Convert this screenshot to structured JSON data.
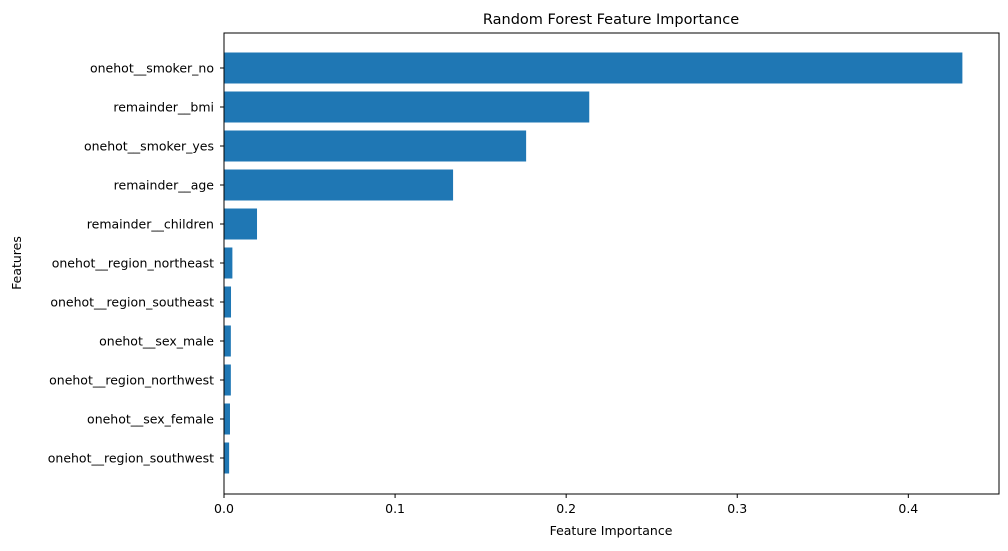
{
  "chart_data": {
    "type": "bar",
    "orientation": "horizontal",
    "title": "Random Forest Feature Importance",
    "xlabel": "Feature Importance",
    "ylabel": "Features",
    "xlim": [
      0,
      0.453
    ],
    "xticks": [
      0.0,
      0.1,
      0.2,
      0.3,
      0.4
    ],
    "xtick_labels": [
      "0.0",
      "0.1",
      "0.2",
      "0.3",
      "0.4"
    ],
    "grid": false,
    "bar_color": "#1f77b4",
    "categories": [
      "onehot__smoker_no",
      "remainder__bmi",
      "onehot__smoker_yes",
      "remainder__age",
      "remainder__children",
      "onehot__region_northeast",
      "onehot__region_southeast",
      "onehot__sex_male",
      "onehot__region_northwest",
      "onehot__sex_female",
      "onehot__region_southwest"
    ],
    "values": [
      0.4316,
      0.2135,
      0.1766,
      0.1339,
      0.0193,
      0.0049,
      0.0041,
      0.004,
      0.004,
      0.0035,
      0.003
    ]
  }
}
